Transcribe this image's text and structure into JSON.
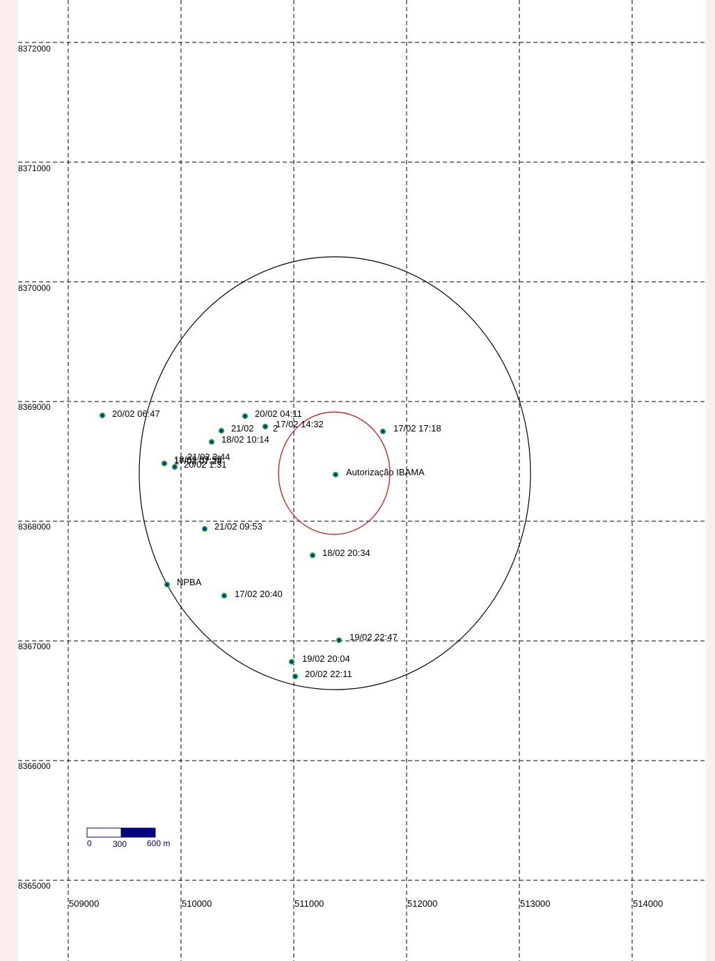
{
  "map": {
    "x_ticks": [
      "509000",
      "510000",
      "511000",
      "512000",
      "513000",
      "514000"
    ],
    "y_ticks": [
      "8372000",
      "8371000",
      "8370000",
      "8369000",
      "8368000",
      "8367000",
      "8366000",
      "8365000"
    ],
    "grid": "dashed",
    "outer_circle_color": "#000000",
    "ellipse_color": "#e00000",
    "marker_fill": "#1133aa",
    "marker_ring": "#33cc33"
  },
  "points": [
    {
      "label": "20/02 06:47"
    },
    {
      "label": "20/02 04:11"
    },
    {
      "label": "21/02"
    },
    {
      "label": "2"
    },
    {
      "label": "17/02 14:32"
    },
    {
      "label": "18/02 10:14"
    },
    {
      "label": "21/02 3:44"
    },
    {
      "label": "17/02 07:28"
    },
    {
      "label": "18/02 07:55"
    },
    {
      "label": "20/02 1:31"
    },
    {
      "label": "17/02  17:18"
    },
    {
      "label": "Autorização IBAMA"
    },
    {
      "label": "21/02 09:53"
    },
    {
      "label": "18/02 20:34"
    },
    {
      "label": "NPBA"
    },
    {
      "label": "17/02 20:40"
    },
    {
      "label": "19/02 22:47"
    },
    {
      "label": "19/02  20:04"
    },
    {
      "label": "20/02  22:11"
    }
  ],
  "scale_bar": {
    "labels": [
      "0",
      "300",
      "600 m"
    ],
    "color": "#000080"
  }
}
